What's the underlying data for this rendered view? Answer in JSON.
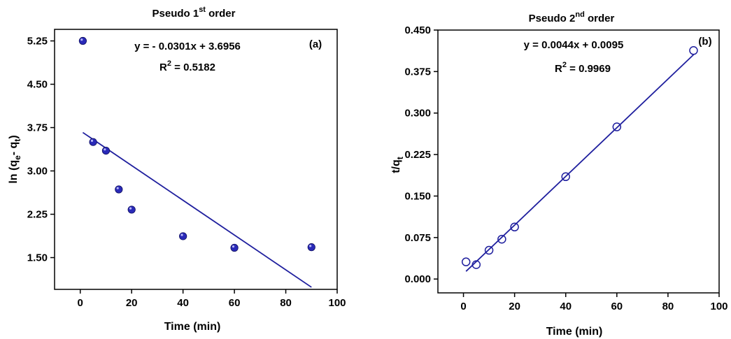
{
  "colors": {
    "accent": "#1f1f9e",
    "marker_fill": "#2a2ab8",
    "axis": "#000000"
  },
  "chart_data": [
    {
      "type": "scatter",
      "panel": "(a)",
      "title": {
        "prefix": "Pseudo 1",
        "sup": "st",
        "suffix": " order"
      },
      "xlabel": "Time (min)",
      "ylabel": {
        "prefix": "ln (q",
        "sub1": "e",
        "middle": "- q",
        "sub2": "t",
        "suffix": ")"
      },
      "xlim": [
        -10,
        100
      ],
      "ylim": [
        0.95,
        5.45
      ],
      "xticks": [
        0,
        20,
        40,
        60,
        80,
        100
      ],
      "yticks": [
        1.5,
        2.25,
        3.0,
        3.75,
        4.5,
        5.25
      ],
      "ytick_labels": [
        "1.50",
        "2.25",
        "3.00",
        "3.75",
        "4.50",
        "5.25"
      ],
      "grid": false,
      "marker": "filled-sphere",
      "x": [
        1,
        5,
        10,
        15,
        20,
        40,
        60,
        90
      ],
      "y": [
        5.25,
        3.5,
        3.35,
        2.68,
        2.33,
        1.87,
        1.67,
        1.68
      ],
      "fit": {
        "x": [
          1,
          90
        ],
        "y": [
          3.665,
          0.987
        ]
      },
      "equation": "y = - 0.0301x + 3.6956",
      "r2": {
        "prefix": "R",
        "sup": "2",
        "value": " = 0.5182"
      }
    },
    {
      "type": "scatter",
      "panel": "(b)",
      "title": {
        "prefix": "Pseudo 2",
        "sup": "nd",
        "suffix": " order"
      },
      "xlabel": "Time (min)",
      "ylabel": {
        "prefix": "t/q",
        "sub": "t"
      },
      "xlim": [
        -10,
        100
      ],
      "ylim": [
        -0.025,
        0.45
      ],
      "xticks": [
        0,
        20,
        40,
        60,
        80,
        100
      ],
      "yticks": [
        0.0,
        0.075,
        0.15,
        0.225,
        0.3,
        0.375,
        0.45
      ],
      "ytick_labels": [
        "0.000",
        "0.075",
        "0.150",
        "0.225",
        "0.300",
        "0.375",
        "0.450"
      ],
      "grid": false,
      "marker": "open-circle",
      "x": [
        1,
        5,
        10,
        15,
        20,
        40,
        60,
        90
      ],
      "y": [
        0.031,
        0.026,
        0.052,
        0.072,
        0.094,
        0.185,
        0.275,
        0.413
      ],
      "fit": {
        "x": [
          1,
          90
        ],
        "y": [
          0.0139,
          0.4055
        ]
      },
      "equation": "y = 0.0044x + 0.0095",
      "r2": {
        "prefix": "R",
        "sup": "2",
        "value": " = 0.9969"
      }
    }
  ]
}
